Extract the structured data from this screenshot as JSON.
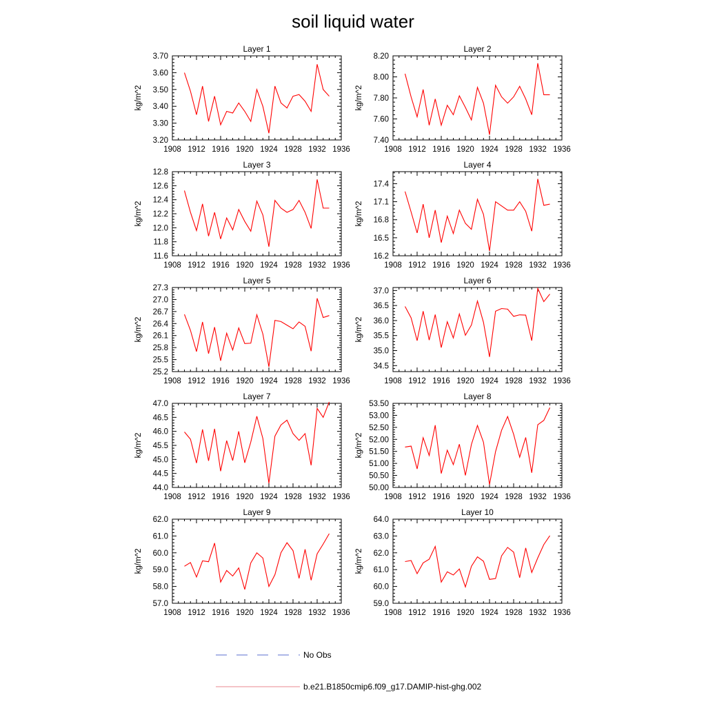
{
  "title": "soil liquid water",
  "legend": {
    "items": [
      {
        "label": "No Obs",
        "color": "#5a6ccf",
        "style": "dashed"
      },
      {
        "label": "b.e21.B1850cmip6.f09_g17.DAMIP-hist-ghg.002",
        "color": "#e8878f",
        "style": "solid"
      }
    ]
  },
  "chart_data": [
    {
      "type": "line",
      "title": "Layer 1",
      "ylabel": "kg/m^2",
      "xlim": [
        1908,
        1936
      ],
      "xticks": [
        1908,
        1912,
        1916,
        1920,
        1924,
        1928,
        1932,
        1936
      ],
      "ylim": [
        3.2,
        3.7
      ],
      "yticks": [
        "3.20",
        "3.30",
        "3.40",
        "3.50",
        "3.60",
        "3.70"
      ],
      "series": [
        {
          "color": "#ff0000",
          "x": [
            1910,
            1911,
            1912,
            1913,
            1914,
            1915,
            1916,
            1917,
            1918,
            1919,
            1920,
            1921,
            1922,
            1923,
            1924,
            1925,
            1926,
            1927,
            1928,
            1929,
            1930,
            1931,
            1932,
            1933,
            1934
          ],
          "values": [
            3.6,
            3.49,
            3.35,
            3.52,
            3.31,
            3.46,
            3.29,
            3.37,
            3.36,
            3.42,
            3.37,
            3.31,
            3.5,
            3.4,
            3.24,
            3.52,
            3.42,
            3.39,
            3.46,
            3.47,
            3.43,
            3.37,
            3.65,
            3.5,
            3.46
          ]
        }
      ]
    },
    {
      "type": "line",
      "title": "Layer 2",
      "ylabel": "kg/m^2",
      "xlim": [
        1908,
        1936
      ],
      "xticks": [
        1908,
        1912,
        1916,
        1920,
        1924,
        1928,
        1932,
        1936
      ],
      "ylim": [
        7.4,
        8.2
      ],
      "yticks": [
        "7.40",
        "7.60",
        "7.80",
        "8.00",
        "8.20"
      ],
      "series": [
        {
          "color": "#ff0000",
          "x": [
            1910,
            1911,
            1912,
            1913,
            1914,
            1915,
            1916,
            1917,
            1918,
            1919,
            1920,
            1921,
            1922,
            1923,
            1924,
            1925,
            1926,
            1927,
            1928,
            1929,
            1930,
            1931,
            1932,
            1933,
            1934
          ],
          "values": [
            8.03,
            7.81,
            7.62,
            7.88,
            7.54,
            7.79,
            7.54,
            7.73,
            7.64,
            7.82,
            7.71,
            7.59,
            7.9,
            7.75,
            7.45,
            7.92,
            7.81,
            7.75,
            7.81,
            7.91,
            7.79,
            7.64,
            8.13,
            7.83,
            7.83
          ]
        }
      ]
    },
    {
      "type": "line",
      "title": "Layer 3",
      "ylabel": "kg/m^2",
      "xlim": [
        1908,
        1936
      ],
      "xticks": [
        1908,
        1912,
        1916,
        1920,
        1924,
        1928,
        1932,
        1936
      ],
      "ylim": [
        11.6,
        12.8
      ],
      "yticks": [
        "11.6",
        "11.8",
        "12.0",
        "12.2",
        "12.4",
        "12.6",
        "12.8"
      ],
      "series": [
        {
          "color": "#ff0000",
          "x": [
            1910,
            1911,
            1912,
            1913,
            1914,
            1915,
            1916,
            1917,
            1918,
            1919,
            1920,
            1921,
            1922,
            1923,
            1924,
            1925,
            1926,
            1927,
            1928,
            1929,
            1930,
            1931,
            1932,
            1933,
            1934
          ],
          "values": [
            12.53,
            12.22,
            11.96,
            12.34,
            11.88,
            12.22,
            11.84,
            12.14,
            11.97,
            12.26,
            12.09,
            11.95,
            12.38,
            12.18,
            11.73,
            12.39,
            12.28,
            12.22,
            12.26,
            12.39,
            12.22,
            11.99,
            12.69,
            12.28,
            12.28
          ]
        }
      ]
    },
    {
      "type": "line",
      "title": "Layer 4",
      "ylabel": "kg/m^2",
      "xlim": [
        1908,
        1936
      ],
      "xticks": [
        1908,
        1912,
        1916,
        1920,
        1924,
        1928,
        1932,
        1936
      ],
      "ylim": [
        16.2,
        17.6
      ],
      "yticks": [
        "16.2",
        "16.5",
        "16.8",
        "17.1",
        "17.4"
      ],
      "series": [
        {
          "color": "#ff0000",
          "x": [
            1910,
            1911,
            1912,
            1913,
            1914,
            1915,
            1916,
            1917,
            1918,
            1919,
            1920,
            1921,
            1922,
            1923,
            1924,
            1925,
            1926,
            1927,
            1928,
            1929,
            1930,
            1931,
            1932,
            1933,
            1934
          ],
          "values": [
            17.27,
            16.93,
            16.58,
            17.06,
            16.5,
            16.96,
            16.42,
            16.86,
            16.57,
            16.96,
            16.74,
            16.64,
            17.14,
            16.89,
            16.28,
            17.1,
            17.03,
            16.96,
            16.96,
            17.1,
            16.94,
            16.61,
            17.48,
            17.04,
            17.06
          ]
        }
      ]
    },
    {
      "type": "line",
      "title": "Layer 5",
      "ylabel": "kg/m^2",
      "xlim": [
        1908,
        1936
      ],
      "xticks": [
        1908,
        1912,
        1916,
        1920,
        1924,
        1928,
        1932,
        1936
      ],
      "ylim": [
        25.2,
        27.3
      ],
      "yticks": [
        "25.2",
        "25.5",
        "25.8",
        "26.1",
        "26.4",
        "26.7",
        "27.0",
        "27.3"
      ],
      "series": [
        {
          "color": "#ff0000",
          "x": [
            1910,
            1911,
            1912,
            1913,
            1914,
            1915,
            1916,
            1917,
            1918,
            1919,
            1920,
            1921,
            1922,
            1923,
            1924,
            1925,
            1926,
            1927,
            1928,
            1929,
            1930,
            1931,
            1932,
            1933,
            1934
          ],
          "values": [
            26.63,
            26.23,
            25.7,
            26.44,
            25.65,
            26.31,
            25.47,
            26.16,
            25.74,
            26.29,
            25.9,
            25.91,
            26.62,
            26.14,
            25.32,
            26.48,
            26.45,
            26.36,
            26.27,
            26.44,
            26.33,
            25.71,
            27.03,
            26.55,
            26.6
          ]
        }
      ]
    },
    {
      "type": "line",
      "title": "Layer 6",
      "ylabel": "kg/m^2",
      "xlim": [
        1908,
        1936
      ],
      "xticks": [
        1908,
        1912,
        1916,
        1920,
        1924,
        1928,
        1932,
        1936
      ],
      "ylim": [
        34.3,
        37.1
      ],
      "yticks": [
        "34.5",
        "35.0",
        "35.5",
        "36.0",
        "36.5",
        "37.0"
      ],
      "series": [
        {
          "color": "#ff0000",
          "x": [
            1910,
            1911,
            1912,
            1913,
            1914,
            1915,
            1916,
            1917,
            1918,
            1919,
            1920,
            1921,
            1922,
            1923,
            1924,
            1925,
            1926,
            1927,
            1928,
            1929,
            1930,
            1931,
            1932,
            1933,
            1934
          ],
          "values": [
            36.47,
            36.09,
            35.33,
            36.31,
            35.35,
            36.2,
            35.1,
            35.96,
            35.42,
            36.22,
            35.51,
            35.85,
            36.65,
            35.94,
            34.79,
            36.31,
            36.4,
            36.38,
            36.14,
            36.19,
            36.18,
            35.33,
            37.07,
            36.63,
            36.88
          ]
        }
      ]
    },
    {
      "type": "line",
      "title": "Layer 7",
      "ylabel": "kg/m^2",
      "xlim": [
        1908,
        1936
      ],
      "xticks": [
        1908,
        1912,
        1916,
        1920,
        1924,
        1928,
        1932,
        1936
      ],
      "ylim": [
        44.0,
        47.0
      ],
      "yticks": [
        "44.0",
        "44.5",
        "45.0",
        "45.5",
        "46.0",
        "46.5",
        "47.0"
      ],
      "series": [
        {
          "color": "#ff0000",
          "x": [
            1910,
            1911,
            1912,
            1913,
            1914,
            1915,
            1916,
            1917,
            1918,
            1919,
            1920,
            1921,
            1922,
            1923,
            1924,
            1925,
            1926,
            1927,
            1928,
            1929,
            1930,
            1931,
            1932,
            1933,
            1934
          ],
          "values": [
            45.98,
            45.72,
            44.87,
            46.07,
            44.95,
            46.09,
            44.58,
            45.67,
            44.96,
            46.0,
            44.88,
            45.62,
            46.54,
            45.75,
            44.15,
            45.83,
            46.23,
            46.4,
            45.92,
            45.68,
            45.92,
            44.79,
            46.82,
            46.5,
            47.05
          ]
        }
      ]
    },
    {
      "type": "line",
      "title": "Layer 8",
      "ylabel": "kg/m^2",
      "xlim": [
        1908,
        1936
      ],
      "xticks": [
        1908,
        1912,
        1916,
        1920,
        1924,
        1928,
        1932,
        1936
      ],
      "ylim": [
        50.0,
        53.5
      ],
      "yticks": [
        "50.00",
        "50.50",
        "51.00",
        "51.50",
        "52.00",
        "52.50",
        "53.00",
        "53.50"
      ],
      "series": [
        {
          "color": "#ff0000",
          "x": [
            1910,
            1911,
            1912,
            1913,
            1914,
            1915,
            1916,
            1917,
            1918,
            1919,
            1920,
            1921,
            1922,
            1923,
            1924,
            1925,
            1926,
            1927,
            1928,
            1929,
            1930,
            1931,
            1932,
            1933,
            1934
          ],
          "values": [
            51.68,
            51.72,
            50.77,
            52.07,
            51.33,
            52.59,
            50.58,
            51.55,
            50.95,
            51.8,
            50.5,
            51.79,
            52.58,
            51.88,
            50.12,
            51.49,
            52.38,
            52.95,
            52.21,
            51.26,
            52.08,
            50.61,
            52.61,
            52.79,
            53.32
          ]
        }
      ]
    },
    {
      "type": "line",
      "title": "Layer 9",
      "ylabel": "kg/m^2",
      "xlim": [
        1908,
        1936
      ],
      "xticks": [
        1908,
        1912,
        1916,
        1920,
        1924,
        1928,
        1932,
        1936
      ],
      "ylim": [
        57.0,
        62.0
      ],
      "yticks": [
        "57.0",
        "58.0",
        "59.0",
        "60.0",
        "61.0",
        "62.0"
      ],
      "series": [
        {
          "color": "#ff0000",
          "x": [
            1910,
            1911,
            1912,
            1913,
            1914,
            1915,
            1916,
            1917,
            1918,
            1919,
            1920,
            1921,
            1922,
            1923,
            1924,
            1925,
            1926,
            1927,
            1928,
            1929,
            1930,
            1931,
            1932,
            1933,
            1934
          ],
          "values": [
            59.2,
            59.42,
            58.56,
            59.52,
            59.47,
            60.58,
            58.26,
            58.95,
            58.62,
            59.1,
            57.82,
            59.4,
            60.0,
            59.69,
            58.0,
            58.7,
            60.01,
            60.6,
            60.13,
            58.48,
            60.21,
            58.37,
            59.94,
            60.52,
            61.14
          ]
        }
      ]
    },
    {
      "type": "line",
      "title": "Layer 10",
      "ylabel": "kg/m^2",
      "xlim": [
        1908,
        1936
      ],
      "xticks": [
        1908,
        1912,
        1916,
        1920,
        1924,
        1928,
        1932,
        1936
      ],
      "ylim": [
        59.0,
        64.0
      ],
      "yticks": [
        "59.0",
        "60.0",
        "61.0",
        "62.0",
        "63.0",
        "64.0"
      ],
      "series": [
        {
          "color": "#ff0000",
          "x": [
            1910,
            1911,
            1912,
            1913,
            1914,
            1915,
            1916,
            1917,
            1918,
            1919,
            1920,
            1921,
            1922,
            1923,
            1924,
            1925,
            1926,
            1927,
            1928,
            1929,
            1930,
            1931,
            1932,
            1933,
            1934
          ],
          "values": [
            61.48,
            61.54,
            60.76,
            61.4,
            61.62,
            62.38,
            60.26,
            60.87,
            60.68,
            61.04,
            59.97,
            61.2,
            61.76,
            61.5,
            60.42,
            60.47,
            61.82,
            62.32,
            62.04,
            60.52,
            62.29,
            60.83,
            61.7,
            62.49,
            63.02
          ]
        }
      ]
    }
  ]
}
